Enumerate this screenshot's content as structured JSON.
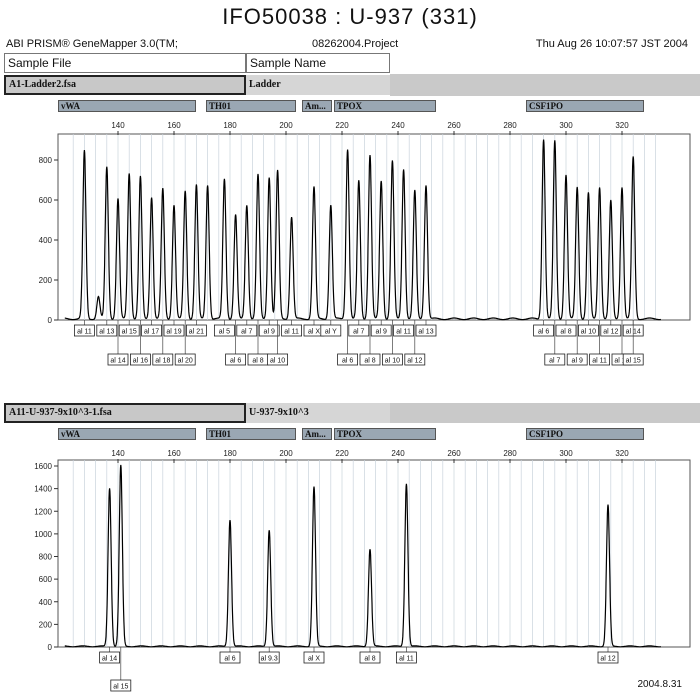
{
  "title": "IFO50038 : U-937 (331)",
  "header": {
    "software": "ABI PRISM® GeneMapper 3.0(TM;",
    "project": "08262004.Project",
    "timestamp": "Thu Aug 26 10:07:57 JST 2004"
  },
  "columns": {
    "sample_file": "Sample File",
    "sample_name": "Sample Name"
  },
  "footer_date": "2004.8.31",
  "chart_data": [
    {
      "type": "line",
      "sample_file": "A1-Ladder2.fsa",
      "sample_name": "Ladder",
      "loci": [
        "vWA",
        "TH01",
        "Am...",
        "TPOX",
        "CSF1PO"
      ],
      "x_ticks": [
        140,
        160,
        180,
        200,
        220,
        240,
        260,
        280,
        300,
        320
      ],
      "y_ticks": [
        0,
        200,
        400,
        600,
        800
      ],
      "ylim": [
        0,
        900
      ],
      "xlim": [
        121,
        334
      ],
      "peaks": [
        {
          "x": 128,
          "y": 840
        },
        {
          "x": 133,
          "y": 110
        },
        {
          "x": 136,
          "y": 760
        },
        {
          "x": 140,
          "y": 600
        },
        {
          "x": 144,
          "y": 730
        },
        {
          "x": 148,
          "y": 710
        },
        {
          "x": 152,
          "y": 610
        },
        {
          "x": 156,
          "y": 650
        },
        {
          "x": 160,
          "y": 570
        },
        {
          "x": 164,
          "y": 640
        },
        {
          "x": 168,
          "y": 670
        },
        {
          "x": 172,
          "y": 670
        },
        {
          "x": 178,
          "y": 700
        },
        {
          "x": 182,
          "y": 520
        },
        {
          "x": 186,
          "y": 570
        },
        {
          "x": 190,
          "y": 720
        },
        {
          "x": 194,
          "y": 710
        },
        {
          "x": 197,
          "y": 740
        },
        {
          "x": 202,
          "y": 510
        },
        {
          "x": 210,
          "y": 660
        },
        {
          "x": 216,
          "y": 570
        },
        {
          "x": 222,
          "y": 850
        },
        {
          "x": 226,
          "y": 690
        },
        {
          "x": 230,
          "y": 820
        },
        {
          "x": 234,
          "y": 690
        },
        {
          "x": 238,
          "y": 790
        },
        {
          "x": 242,
          "y": 750
        },
        {
          "x": 246,
          "y": 640
        },
        {
          "x": 250,
          "y": 670
        },
        {
          "x": 292,
          "y": 900
        },
        {
          "x": 296,
          "y": 890
        },
        {
          "x": 300,
          "y": 720
        },
        {
          "x": 304,
          "y": 660
        },
        {
          "x": 308,
          "y": 630
        },
        {
          "x": 312,
          "y": 660
        },
        {
          "x": 316,
          "y": 590
        },
        {
          "x": 320,
          "y": 660
        },
        {
          "x": 324,
          "y": 810
        }
      ],
      "allele_labels_row1": [
        "al 11",
        "al 13",
        "al 15",
        "al 17",
        "al 19",
        "al 21",
        "al 5",
        "al 7",
        "al 9",
        "al 11",
        "al X",
        "al Y",
        "al 7",
        "al 9",
        "al 11",
        "al 13",
        "al 6",
        "al 8",
        "al 10",
        "al 12",
        "al 14"
      ],
      "allele_labels_row2": [
        "al 14",
        "al 16",
        "al 18",
        "al 20",
        "al 6",
        "al 8",
        "al 10",
        "al 6",
        "al 8",
        "al 10",
        "al 12",
        "al 7",
        "al 9",
        "al 11",
        "al 13",
        "al 15"
      ]
    },
    {
      "type": "line",
      "sample_file": "A11-U-937-9x10^3-1.fsa",
      "sample_name": "U-937-9x10^3",
      "loci": [
        "vWA",
        "TH01",
        "Am...",
        "TPOX",
        "CSF1PO"
      ],
      "x_ticks": [
        140,
        160,
        180,
        200,
        220,
        240,
        260,
        280,
        300,
        320
      ],
      "y_ticks": [
        0,
        200,
        400,
        600,
        800,
        1000,
        1200,
        1400,
        1600
      ],
      "ylim": [
        0,
        1600
      ],
      "xlim": [
        121,
        334
      ],
      "peaks": [
        {
          "x": 137,
          "y": 1400
        },
        {
          "x": 141,
          "y": 1600
        },
        {
          "x": 180,
          "y": 1120
        },
        {
          "x": 194,
          "y": 1030
        },
        {
          "x": 210,
          "y": 1410
        },
        {
          "x": 230,
          "y": 860
        },
        {
          "x": 243,
          "y": 1440
        },
        {
          "x": 315,
          "y": 1250
        }
      ],
      "allele_labels_row1": [
        "al 14",
        "al 6",
        "al 9.3",
        "al X",
        "al 8",
        "al 11",
        "al 12"
      ],
      "allele_labels_row2": [
        "al 15"
      ]
    }
  ]
}
